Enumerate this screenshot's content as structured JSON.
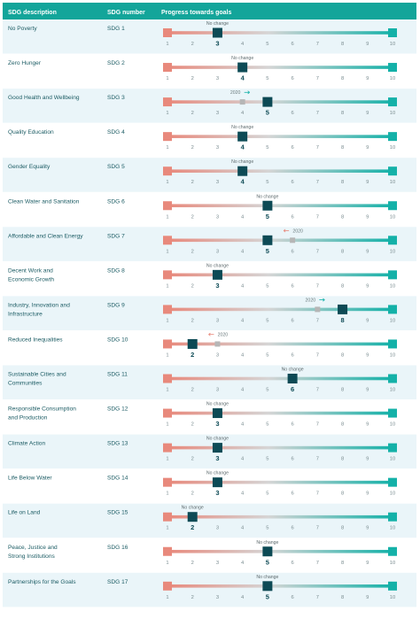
{
  "header": {
    "col_description": "SDG description",
    "col_number": "SDG number",
    "col_progress": "Progress towards goals"
  },
  "colors": {
    "header_bg": "#13a59a",
    "row_alt_bg": "#eaf5f9",
    "row_bg": "#ffffff",
    "bad": "#e8897c",
    "mid": "#d5d5d5",
    "good": "#14b1a8",
    "marker": "#0d4a55",
    "prior_marker": "#b6b6b6",
    "text": "#1c5c64",
    "tick_text": "#7a8c90"
  },
  "chart_data": {
    "type": "table",
    "scale": {
      "min": 1,
      "max": 10,
      "ticks": [
        "1",
        "2",
        "3",
        "4",
        "5",
        "6",
        "7",
        "8",
        "9",
        "10"
      ]
    },
    "no_change_label": "No change",
    "prior_year_label": "2020",
    "rows": [
      {
        "description": [
          "No Poverty"
        ],
        "number": "SDG 1",
        "score": 3,
        "prior": null
      },
      {
        "description": [
          "Zero Hunger"
        ],
        "number": "SDG 2",
        "score": 4,
        "prior": null
      },
      {
        "description": [
          "Good Health and Wellbeing"
        ],
        "number": "SDG 3",
        "score": 5,
        "prior": 4
      },
      {
        "description": [
          "Quality Education"
        ],
        "number": "SDG 4",
        "score": 4,
        "prior": null
      },
      {
        "description": [
          "Gender Equality"
        ],
        "number": "SDG 5",
        "score": 4,
        "prior": null
      },
      {
        "description": [
          "Clean Water and Sanitation"
        ],
        "number": "SDG 6",
        "score": 5,
        "prior": null
      },
      {
        "description": [
          "Affordable and Clean Energy"
        ],
        "number": "SDG 7",
        "score": 5,
        "prior": 6
      },
      {
        "description": [
          "Decent Work and",
          "Economic Growth"
        ],
        "number": "SDG 8",
        "score": 3,
        "prior": null
      },
      {
        "description": [
          "Industry, Innovation and",
          "Infrastructure"
        ],
        "number": "SDG 9",
        "score": 8,
        "prior": 7
      },
      {
        "description": [
          "Reduced Inequalities"
        ],
        "number": "SDG 10",
        "score": 2,
        "prior": 3
      },
      {
        "description": [
          "Sustainable Cities and",
          "Communities"
        ],
        "number": "SDG 11",
        "score": 6,
        "prior": null
      },
      {
        "description": [
          "Responsible Consumption",
          "and Production"
        ],
        "number": "SDG 12",
        "score": 3,
        "prior": null
      },
      {
        "description": [
          "Climate Action"
        ],
        "number": "SDG 13",
        "score": 3,
        "prior": null
      },
      {
        "description": [
          "Life Below Water"
        ],
        "number": "SDG 14",
        "score": 3,
        "prior": null
      },
      {
        "description": [
          "Life on Land"
        ],
        "number": "SDG 15",
        "score": 2,
        "prior": null
      },
      {
        "description": [
          "Peace, Justice and",
          "Strong Institutions"
        ],
        "number": "SDG 16",
        "score": 5,
        "prior": null
      },
      {
        "description": [
          "Partnerships for the Goals"
        ],
        "number": "SDG 17",
        "score": 5,
        "prior": null
      }
    ]
  }
}
